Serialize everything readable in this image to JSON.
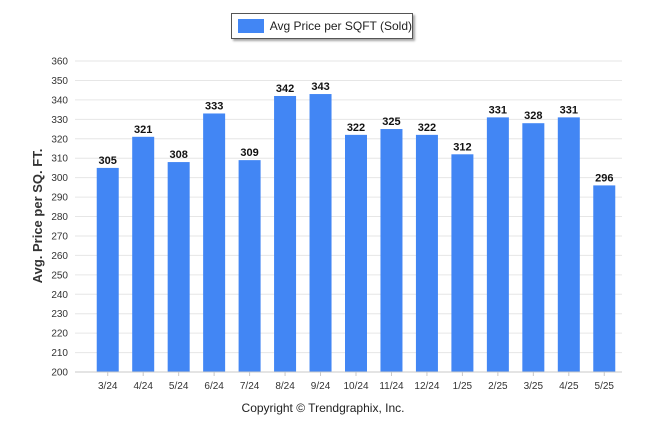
{
  "chart_data": {
    "type": "bar",
    "categories": [
      "3/24",
      "4/24",
      "5/24",
      "6/24",
      "7/24",
      "8/24",
      "9/24",
      "10/24",
      "11/24",
      "12/24",
      "1/25",
      "2/25",
      "3/25",
      "4/25",
      "5/25"
    ],
    "series": [
      {
        "name": "Avg Price per SQFT (Sold)",
        "values": [
          305,
          321,
          308,
          333,
          309,
          342,
          343,
          322,
          325,
          322,
          312,
          331,
          328,
          331,
          296
        ]
      }
    ],
    "ylabel": "Avg. Price per SQ. FT.",
    "xlabel": "",
    "ylim": [
      200,
      360
    ],
    "yticks": [
      200,
      210,
      220,
      230,
      240,
      250,
      260,
      270,
      280,
      290,
      300,
      310,
      320,
      330,
      340,
      350,
      360
    ],
    "grid": true,
    "legend_position": "top-center",
    "bar_color": "#4286f4",
    "data_labels": true
  },
  "footer": {
    "copyright": "Copyright © Trendgraphix, Inc."
  }
}
